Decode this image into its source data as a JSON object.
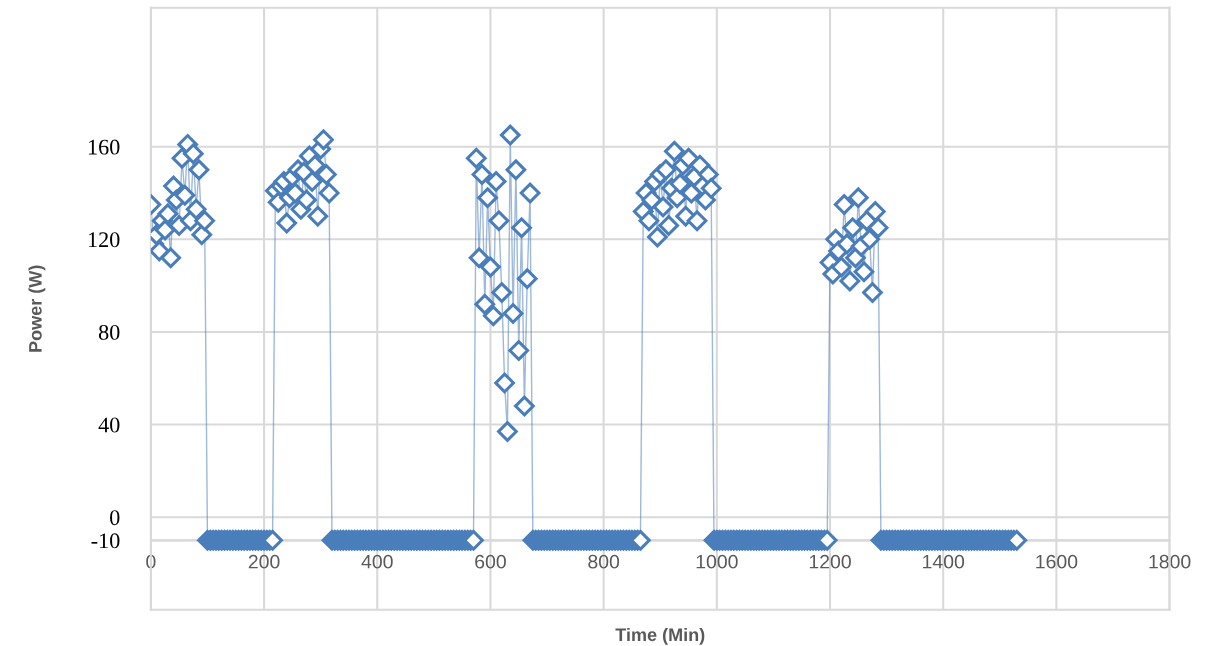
{
  "chart_data": {
    "type": "line",
    "xlabel": "Time (Min)",
    "ylabel": "Power (W)",
    "xlim": [
      0,
      1800
    ],
    "xticks": [
      0,
      200,
      400,
      600,
      800,
      1000,
      1200,
      1400,
      1600,
      1800
    ],
    "ylim": [
      -40,
      220
    ],
    "yticks": [
      -10,
      0,
      40,
      80,
      120,
      160
    ],
    "grid": true,
    "marker": "diamond",
    "line_style": "solid",
    "series": [
      {
        "color": "#4a7ebb",
        "x": [
          0,
          5,
          10,
          15,
          20,
          25,
          30,
          35,
          40,
          45,
          50,
          55,
          60,
          65,
          70,
          75,
          80,
          85,
          90,
          95,
          100,
          105,
          110,
          115,
          120,
          125,
          130,
          135,
          140,
          145,
          150,
          155,
          160,
          165,
          170,
          175,
          180,
          185,
          190,
          195,
          200,
          205,
          210,
          215,
          220,
          225,
          230,
          235,
          240,
          245,
          250,
          255,
          260,
          265,
          270,
          275,
          280,
          285,
          290,
          295,
          300,
          305,
          310,
          315,
          320,
          325,
          330,
          335,
          340,
          345,
          350,
          355,
          360,
          365,
          370,
          375,
          380,
          385,
          390,
          395,
          400,
          405,
          410,
          415,
          420,
          425,
          430,
          435,
          440,
          445,
          450,
          455,
          460,
          465,
          470,
          475,
          480,
          485,
          490,
          495,
          500,
          505,
          510,
          515,
          520,
          525,
          530,
          535,
          540,
          545,
          550,
          555,
          560,
          565,
          570,
          575,
          580,
          585,
          590,
          595,
          600,
          605,
          610,
          615,
          620,
          625,
          630,
          635,
          640,
          645,
          650,
          655,
          660,
          665,
          670,
          675,
          680,
          685,
          690,
          695,
          700,
          705,
          710,
          715,
          720,
          725,
          730,
          735,
          740,
          745,
          750,
          755,
          760,
          765,
          770,
          775,
          780,
          785,
          790,
          795,
          800,
          805,
          810,
          815,
          820,
          825,
          830,
          835,
          840,
          845,
          850,
          855,
          860,
          865,
          870,
          875,
          880,
          885,
          890,
          895,
          900,
          905,
          910,
          915,
          920,
          925,
          930,
          935,
          940,
          945,
          950,
          955,
          960,
          965,
          970,
          975,
          980,
          985,
          990,
          995,
          1000,
          1005,
          1010,
          1015,
          1020,
          1025,
          1030,
          1035,
          1040,
          1045,
          1050,
          1055,
          1060,
          1065,
          1070,
          1075,
          1080,
          1085,
          1090,
          1095,
          1100,
          1105,
          1110,
          1115,
          1120,
          1125,
          1130,
          1135,
          1140,
          1145,
          1150,
          1155,
          1160,
          1165,
          1170,
          1175,
          1180,
          1185,
          1190,
          1195,
          1200,
          1205,
          1210,
          1215,
          1220,
          1225,
          1230,
          1235,
          1240,
          1245,
          1250,
          1255,
          1260,
          1265,
          1270,
          1275,
          1280,
          1285,
          1290,
          1295,
          1300,
          1305,
          1310,
          1315,
          1320,
          1325,
          1330,
          1335,
          1340,
          1345,
          1350,
          1355,
          1360,
          1365,
          1370,
          1375,
          1380,
          1385,
          1390,
          1395,
          1400,
          1405,
          1410,
          1415,
          1420,
          1425,
          1430,
          1435,
          1440,
          1445,
          1450,
          1455,
          1460,
          1465,
          1470,
          1475,
          1480,
          1485,
          1490,
          1495,
          1500,
          1505,
          1510,
          1515,
          1520,
          1525,
          1530
        ],
        "values": [
          135,
          118,
          122,
          115,
          128,
          124,
          131,
          112,
          143,
          137,
          126,
          155,
          139,
          161,
          128,
          157,
          133,
          150,
          122,
          128,
          -10,
          -10,
          -10,
          -10,
          -10,
          -10,
          -10,
          -10,
          -10,
          -10,
          -10,
          -10,
          -10,
          -10,
          -10,
          -10,
          -10,
          -10,
          -10,
          -10,
          -10,
          -10,
          -10,
          -10,
          141,
          136,
          143,
          145,
          127,
          138,
          147,
          140,
          150,
          133,
          149,
          137,
          156,
          145,
          152,
          130,
          159,
          163,
          148,
          140,
          -10,
          -10,
          -10,
          -10,
          -10,
          -10,
          -10,
          -10,
          -10,
          -10,
          -10,
          -10,
          -10,
          -10,
          -10,
          -10,
          -10,
          -10,
          -10,
          -10,
          -10,
          -10,
          -10,
          -10,
          -10,
          -10,
          -10,
          -10,
          -10,
          -10,
          -10,
          -10,
          -10,
          -10,
          -10,
          -10,
          -10,
          -10,
          -10,
          -10,
          -10,
          -10,
          -10,
          -10,
          -10,
          -10,
          -10,
          -10,
          -10,
          -10,
          -10,
          155,
          112,
          148,
          92,
          138,
          108,
          87,
          145,
          128,
          97,
          58,
          37,
          165,
          88,
          150,
          72,
          125,
          48,
          103,
          140,
          -10,
          -10,
          -10,
          -10,
          -10,
          -10,
          -10,
          -10,
          -10,
          -10,
          -10,
          -10,
          -10,
          -10,
          -10,
          -10,
          -10,
          -10,
          -10,
          -10,
          -10,
          -10,
          -10,
          -10,
          -10,
          -10,
          -10,
          -10,
          -10,
          -10,
          -10,
          -10,
          -10,
          -10,
          -10,
          -10,
          -10,
          -10,
          -10,
          132,
          140,
          128,
          137,
          145,
          121,
          148,
          134,
          150,
          126,
          142,
          158,
          138,
          144,
          152,
          130,
          155,
          140,
          147,
          128,
          152,
          143,
          137,
          148,
          142,
          -10,
          -10,
          -10,
          -10,
          -10,
          -10,
          -10,
          -10,
          -10,
          -10,
          -10,
          -10,
          -10,
          -10,
          -10,
          -10,
          -10,
          -10,
          -10,
          -10,
          -10,
          -10,
          -10,
          -10,
          -10,
          -10,
          -10,
          -10,
          -10,
          -10,
          -10,
          -10,
          -10,
          -10,
          -10,
          -10,
          -10,
          -10,
          -10,
          -10,
          -10,
          110,
          105,
          120,
          115,
          108,
          135,
          118,
          102,
          125,
          112,
          138,
          117,
          106,
          128,
          120,
          97,
          132,
          125,
          -10,
          -10,
          -10,
          -10,
          -10,
          -10,
          -10,
          -10,
          -10,
          -10,
          -10,
          -10,
          -10,
          -10,
          -10,
          -10,
          -10,
          -10,
          -10,
          -10,
          -10,
          -10,
          -10,
          -10,
          -10,
          -10,
          -10,
          -10,
          -10,
          -10,
          -10,
          -10,
          -10,
          -10,
          -10,
          -10,
          -10,
          -10,
          -10,
          -10,
          -10,
          -10,
          -10,
          -10,
          -10,
          -10,
          -10,
          -10,
          -10
        ]
      }
    ]
  }
}
